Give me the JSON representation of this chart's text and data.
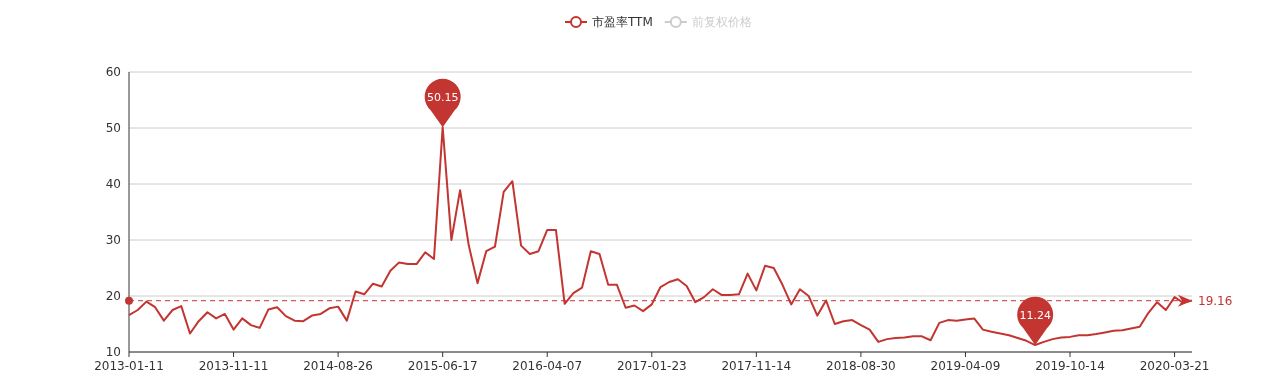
{
  "chart_data": {
    "type": "line",
    "categories": [
      "2013-01-11",
      null,
      null,
      null,
      null,
      null,
      null,
      null,
      null,
      null,
      null,
      null,
      "2013-11-11",
      null,
      null,
      null,
      null,
      null,
      null,
      null,
      null,
      null,
      null,
      null,
      "2014-08-26",
      null,
      null,
      null,
      null,
      null,
      null,
      null,
      null,
      null,
      null,
      null,
      "2015-06-17",
      null,
      null,
      null,
      null,
      null,
      null,
      null,
      null,
      null,
      null,
      null,
      "2016-04-07",
      null,
      null,
      null,
      null,
      null,
      null,
      null,
      null,
      null,
      null,
      null,
      "2017-01-23",
      null,
      null,
      null,
      null,
      null,
      null,
      null,
      null,
      null,
      null,
      null,
      "2017-11-14",
      null,
      null,
      null,
      null,
      null,
      null,
      null,
      null,
      null,
      null,
      null,
      "2018-08-30",
      null,
      null,
      null,
      null,
      null,
      null,
      null,
      null,
      null,
      null,
      null,
      "2019-04-09",
      null,
      null,
      null,
      null,
      null,
      null,
      null,
      null,
      null,
      null,
      null,
      "2019-10-14",
      null,
      null,
      null,
      null,
      null,
      null,
      null,
      null,
      null,
      null,
      null,
      "2020-03-21",
      null,
      null
    ],
    "series": [
      {
        "name": "市盈率TTM",
        "color": "#c23531",
        "values": [
          16.6,
          17.5,
          19.0,
          18.0,
          15.6,
          17.5,
          18.2,
          13.3,
          15.5,
          17.1,
          16.0,
          16.8,
          14.0,
          16.0,
          14.8,
          14.3,
          17.6,
          18.0,
          16.4,
          15.6,
          15.5,
          16.5,
          16.8,
          17.8,
          18.1,
          15.6,
          20.8,
          20.3,
          22.2,
          21.7,
          24.5,
          26.0,
          25.7,
          25.7,
          27.8,
          26.6,
          50.15,
          30.0,
          38.9,
          29.0,
          22.3,
          28.0,
          28.8,
          38.6,
          40.5,
          29.0,
          27.5,
          28.0,
          31.8,
          31.8,
          18.6,
          20.5,
          21.5,
          28.0,
          27.5,
          22.0,
          22.0,
          17.9,
          18.3,
          17.3,
          18.5,
          21.6,
          22.5,
          23.0,
          21.8,
          18.9,
          19.8,
          21.2,
          20.2,
          20.2,
          20.3,
          24.0,
          21.0,
          25.4,
          25.0,
          22.0,
          18.5,
          21.2,
          20.0,
          16.5,
          19.2,
          15.0,
          15.5,
          15.7,
          14.8,
          14.0,
          11.8,
          12.3,
          12.5,
          12.6,
          12.8,
          12.8,
          12.1,
          15.2,
          15.7,
          15.6,
          15.8,
          16.0,
          14.0,
          13.6,
          13.3,
          13.0,
          12.5,
          12.0,
          11.24,
          11.8,
          12.3,
          12.6,
          12.7,
          13.0,
          13.0,
          13.2,
          13.5,
          13.8,
          13.9,
          14.2,
          14.5,
          17.0,
          18.9,
          17.5,
          19.8,
          18.8,
          19.2
        ]
      },
      {
        "name": "前复权价格",
        "color": "#cccccc",
        "values": [
          null,
          null,
          null,
          null,
          null,
          null,
          null,
          null,
          null,
          null,
          null,
          null,
          null,
          null,
          null,
          null,
          null,
          null,
          null,
          null,
          null,
          null,
          null,
          null,
          null,
          null,
          null,
          null,
          null,
          null,
          null,
          null,
          null,
          null,
          null,
          null,
          null,
          null,
          null,
          null,
          null,
          null,
          null,
          null,
          null,
          null,
          null,
          null,
          null,
          null,
          null,
          null,
          null,
          null,
          null,
          null,
          null,
          null,
          null,
          null,
          null,
          null,
          null,
          null,
          null,
          null,
          null,
          null,
          null,
          null,
          null,
          null,
          null,
          null,
          null,
          null,
          null,
          null,
          null,
          null,
          null,
          null,
          null,
          null,
          null,
          null,
          null,
          null,
          null,
          null,
          null,
          null,
          null,
          null,
          null,
          null,
          null,
          null,
          null,
          null,
          null,
          null,
          null,
          null,
          null,
          null,
          null,
          null,
          null,
          null,
          null,
          null,
          null,
          null,
          null,
          null,
          null,
          null,
          null,
          null,
          null,
          null,
          null
        ]
      }
    ],
    "ylim": [
      10,
      60
    ],
    "yticks": [
      10,
      20,
      30,
      40,
      50,
      60
    ],
    "grid": "y",
    "legend": "top",
    "line_style": "solid",
    "ref_lines": [
      {
        "axis": "y",
        "value": 19.16,
        "label": "19.16",
        "color": "#c23531",
        "line_style": "dashed"
      }
    ],
    "annotations": [
      {
        "text": "50.15",
        "y": 50.15
      },
      {
        "text": "11.24",
        "y": 11.24
      }
    ]
  }
}
